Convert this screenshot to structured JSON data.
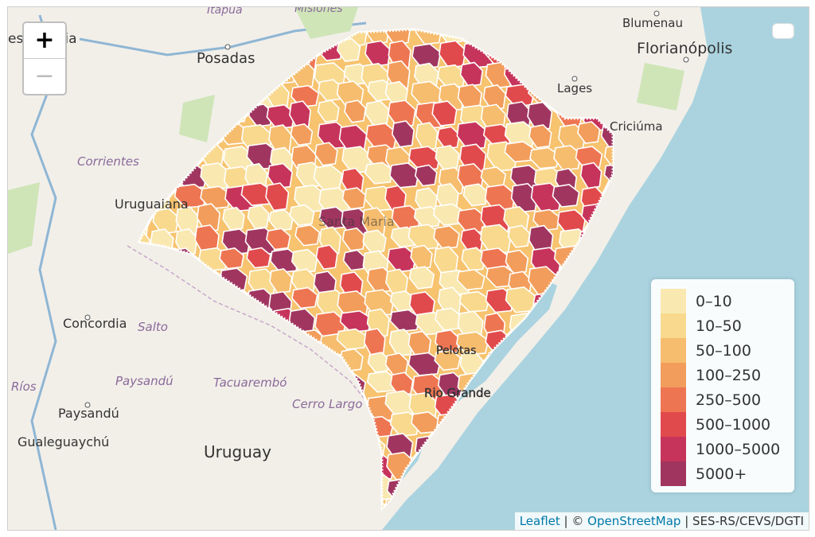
{
  "zoom": {
    "in_label": "+",
    "out_label": "−"
  },
  "labels": {
    "posadas": "Posadas",
    "corrientes": "Corrientes",
    "uruguaiana": "Uruguaiana",
    "concordia": "Concordia",
    "salto": "Salto",
    "paysandu_region": "Paysandú",
    "paysandu_city": "Paysandú",
    "tacuarembo": "Tacuarembó",
    "rios": "Ríos",
    "gualeguaychu": "Gualeguaychú",
    "uruguay": "Uruguay",
    "cerro_largo": "Cerro Largo",
    "blumenau": "Blumenau",
    "florianopolis": "Florianópolis",
    "lages": "Lages",
    "criciuma": "Criciúma",
    "rio_grande": "Rio Grande",
    "pelotas": "Pelotas",
    "top_left_fragment": "esi",
    "top_left_fragment2": "cia",
    "itapua": "Itapúa",
    "misiones": "Misiones"
  },
  "legend": {
    "title": "",
    "items": [
      {
        "label": "0–10",
        "color": "#f9e8b0"
      },
      {
        "label": "10–50",
        "color": "#f8d98e"
      },
      {
        "label": "50–100",
        "color": "#f6bd6e"
      },
      {
        "label": "100–250",
        "color": "#f29d5c"
      },
      {
        "label": "250–500",
        "color": "#ee7552"
      },
      {
        "label": "500–1000",
        "color": "#e14a4d"
      },
      {
        "label": "1000–5000",
        "color": "#c7345b"
      },
      {
        "label": "5000+",
        "color": "#a03660"
      }
    ]
  },
  "attribution": {
    "leaflet": "Leaflet",
    "sep1": " | © ",
    "osm": "OpenStreetMap",
    "sep2": " | ",
    "source": "SES-RS/CEVS/DGTI"
  },
  "colors": {
    "water": "#aad3df",
    "land": "#f2efe9",
    "state_border": "#ffffff"
  }
}
